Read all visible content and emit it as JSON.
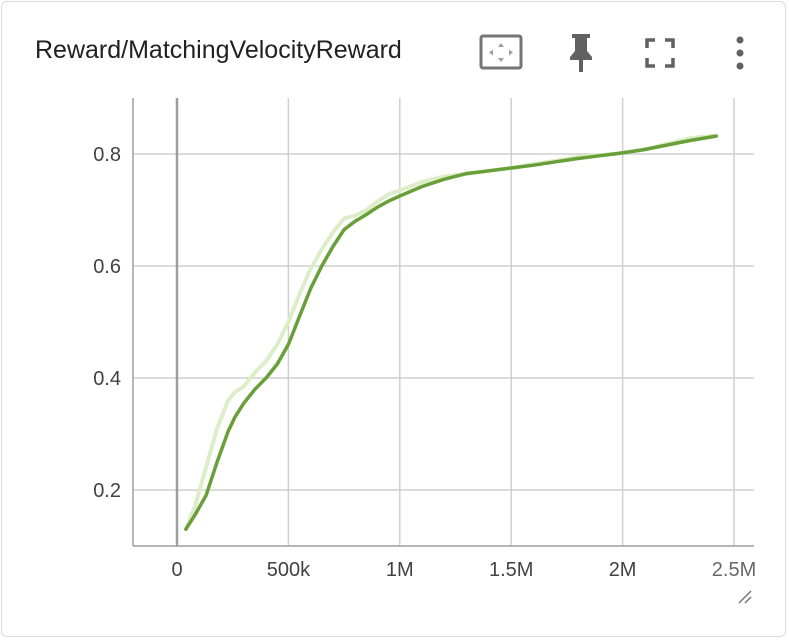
{
  "card": {
    "title": "Reward/MatchingVelocityReward",
    "tools": [
      {
        "icon": "fit-domain-icon"
      },
      {
        "icon": "pin-icon"
      },
      {
        "icon": "fullscreen-icon"
      },
      {
        "icon": "more-vert-icon"
      }
    ]
  },
  "colors": {
    "smoothed_line": "#689f38",
    "raw_line": "#dcedc8",
    "grid": "#cfcfcf",
    "axis": "#9e9e9e",
    "tick_text": "#424242",
    "title_text": "#212121"
  },
  "chart_data": {
    "type": "line",
    "title": "Reward/MatchingVelocityReward",
    "xlabel": "",
    "ylabel": "",
    "xlim": [
      -200000,
      2600000
    ],
    "ylim": [
      0.1,
      0.9
    ],
    "x_ticks": [
      {
        "value": 0,
        "label": "0"
      },
      {
        "value": 500000,
        "label": "500k"
      },
      {
        "value": 1000000,
        "label": "1M"
      },
      {
        "value": 1500000,
        "label": "1.5M"
      },
      {
        "value": 2000000,
        "label": "2M"
      },
      {
        "value": 2500000,
        "label": "2.5M"
      }
    ],
    "y_ticks": [
      {
        "value": 0.2,
        "label": "0.2"
      },
      {
        "value": 0.4,
        "label": "0.4"
      },
      {
        "value": 0.6,
        "label": "0.6"
      },
      {
        "value": 0.8,
        "label": "0.8"
      }
    ],
    "grid": true,
    "series": [
      {
        "role": "raw",
        "x": [
          40000,
          80000,
          130000,
          180000,
          230000,
          260000,
          300000,
          350000,
          400000,
          450000,
          500000,
          550000,
          600000,
          650000,
          700000,
          750000,
          800000,
          850000,
          900000,
          950000,
          1000000,
          1100000,
          1200000,
          1300000,
          1400000,
          1500000,
          1600000,
          1700000,
          1800000,
          1900000,
          2000000,
          2100000,
          2200000,
          2300000,
          2420000
        ],
        "y": [
          0.13,
          0.17,
          0.24,
          0.31,
          0.36,
          0.375,
          0.385,
          0.41,
          0.43,
          0.46,
          0.5,
          0.55,
          0.595,
          0.63,
          0.66,
          0.685,
          0.69,
          0.7,
          0.715,
          0.728,
          0.735,
          0.75,
          0.76,
          0.765,
          0.77,
          0.775,
          0.782,
          0.788,
          0.795,
          0.798,
          0.802,
          0.808,
          0.818,
          0.828,
          0.833
        ]
      },
      {
        "role": "smoothed",
        "x": [
          40000,
          80000,
          130000,
          180000,
          230000,
          260000,
          300000,
          350000,
          400000,
          450000,
          500000,
          550000,
          600000,
          650000,
          700000,
          750000,
          800000,
          850000,
          900000,
          950000,
          1000000,
          1100000,
          1200000,
          1300000,
          1400000,
          1500000,
          1600000,
          1700000,
          1800000,
          1900000,
          2000000,
          2100000,
          2200000,
          2300000,
          2420000
        ],
        "y": [
          0.13,
          0.155,
          0.19,
          0.25,
          0.305,
          0.33,
          0.355,
          0.38,
          0.4,
          0.425,
          0.46,
          0.51,
          0.56,
          0.6,
          0.635,
          0.665,
          0.68,
          0.692,
          0.705,
          0.716,
          0.725,
          0.742,
          0.755,
          0.765,
          0.77,
          0.775,
          0.78,
          0.786,
          0.792,
          0.797,
          0.802,
          0.808,
          0.816,
          0.824,
          0.832
        ]
      }
    ]
  }
}
